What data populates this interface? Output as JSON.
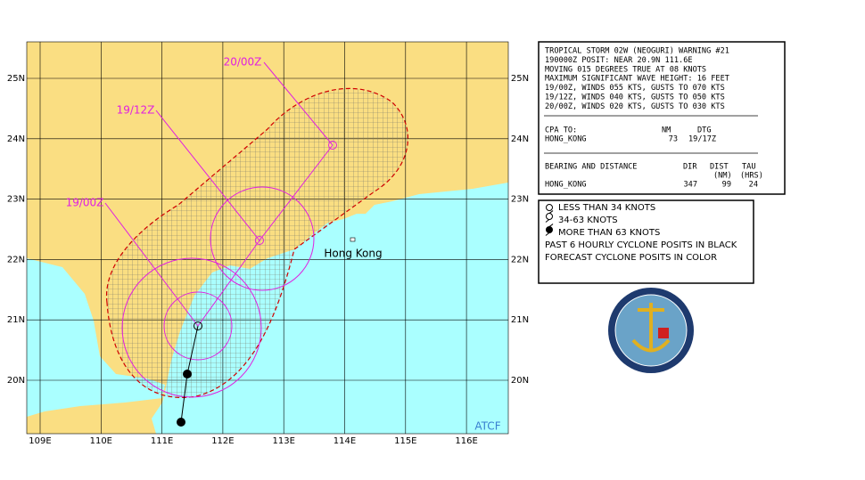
{
  "map": {
    "lat_labels": [
      "25N",
      "24N",
      "23N",
      "22N",
      "21N",
      "20N"
    ],
    "lon_labels": [
      "109E",
      "110E",
      "111E",
      "112E",
      "113E",
      "114E",
      "115E",
      "116E"
    ],
    "track_labels": [
      "19/00Z",
      "19/12Z",
      "20/00Z"
    ],
    "place_label": "Hong Kong",
    "source_label": "ATCF"
  },
  "warning": {
    "lines": [
      "TROPICAL STORM 02W (NEOGURI) WARNING #21",
      "190000Z POSIT: NEAR 20.9N 111.6E",
      "MOVING 015 DEGREES TRUE AT 08 KNOTS",
      "MAXIMUM SIGNIFICANT WAVE HEIGHT: 16 FEET",
      "19/00Z, WINDS 055 KTS, GUSTS TO 070 KTS",
      "19/12Z, WINDS 040 KTS, GUSTS TO 050 KTS",
      "20/00Z, WINDS 020 KTS, GUSTS TO 030 KTS"
    ],
    "cpa": {
      "header": [
        "CPA TO:",
        "NM",
        "DTG"
      ],
      "row": [
        "HONG_KONG",
        "73",
        "19/17Z"
      ]
    },
    "bearing": {
      "header": [
        "BEARING AND DISTANCE",
        "DIR",
        "DIST",
        "TAU"
      ],
      "subheader": [
        "(NM)",
        "(HRS)"
      ],
      "row": [
        "HONG_KONG",
        "347",
        "99",
        "24"
      ]
    }
  },
  "legend": {
    "items": [
      "LESS THAN 34 KNOTS",
      "34-63 KNOTS",
      "MORE THAN 63 KNOTS",
      "PAST 6 HOURLY CYCLONE POSITS IN BLACK",
      "FORECAST CYCLONE POSITS IN COLOR"
    ]
  }
}
